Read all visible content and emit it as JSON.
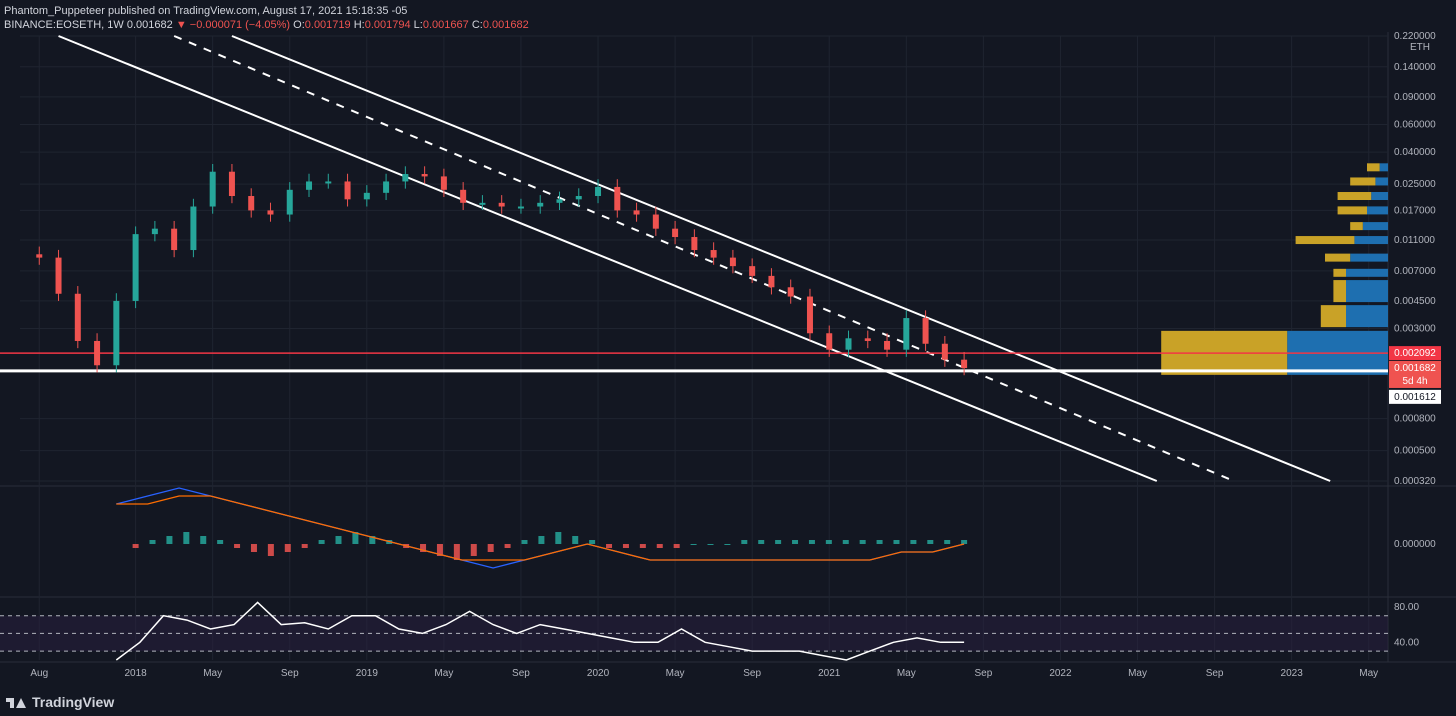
{
  "header": {
    "line1": "Phantom_Puppeteer published on TradingView.com, August 17, 2021 15:18:35 -05",
    "symbol": "BINANCE:EOSETH, 1W",
    "last": "0.001682",
    "change": "−0.000071 (−4.05%)",
    "o_label": "O:",
    "o": "0.001719",
    "h_label": "H:",
    "h": "0.001794",
    "l_label": "L:",
    "l": "0.001667",
    "c_label": "C:",
    "c": "0.001682"
  },
  "footer": {
    "brand": "TradingView"
  },
  "colors": {
    "bg": "#131722",
    "up": "#26a69a",
    "down": "#ef5350",
    "grid": "#1f2430",
    "red_line": "#f23645",
    "white": "#ffffff",
    "vp_gold": "#c9a227",
    "vp_blue": "#1e6fb0"
  },
  "chart_data": [
    {
      "type": "line",
      "title": "",
      "y_scale": "log",
      "ylabel": "ETH",
      "y_ticks": [
        "0.220000",
        "0.140000",
        "0.090000",
        "0.060000",
        "0.040000",
        "0.025000",
        "0.017000",
        "0.011000",
        "0.007000",
        "0.004500",
        "0.003000",
        "0.000800",
        "0.000500",
        "0.000320"
      ],
      "x_ticks": [
        "Aug",
        "2018",
        "May",
        "Sep",
        "2019",
        "May",
        "Sep",
        "2020",
        "May",
        "Sep",
        "2021",
        "May",
        "Sep",
        "2022",
        "May",
        "Sep",
        "2023",
        "May"
      ],
      "x_range": [
        "2017-07",
        "2023-06"
      ],
      "price_labels": {
        "resistance": "0.002092",
        "last": "0.001682",
        "countdown": "5d 4h",
        "support": "0.001612"
      },
      "series": [
        {
          "values": [
            [
              "2017-08",
              0.0085
            ],
            [
              "2017-09",
              0.005
            ],
            [
              "2017-10",
              0.0025
            ],
            [
              "2017-11",
              0.00175
            ],
            [
              "2017-12",
              0.0045
            ],
            [
              "2018-01",
              0.012
            ],
            [
              "2018-02",
              0.013
            ],
            [
              "2018-03",
              0.0095
            ],
            [
              "2018-04",
              0.018
            ],
            [
              "2018-05",
              0.03
            ],
            [
              "2018-06",
              0.021
            ],
            [
              "2018-07",
              0.017
            ],
            [
              "2018-08",
              0.016
            ],
            [
              "2018-09",
              0.023
            ],
            [
              "2018-10",
              0.026
            ],
            [
              "2018-11",
              0.026
            ],
            [
              "2018-12",
              0.02
            ],
            [
              "2019-01",
              0.022
            ],
            [
              "2019-02",
              0.026
            ],
            [
              "2019-03",
              0.029
            ],
            [
              "2019-04",
              0.028
            ],
            [
              "2019-05",
              0.023
            ],
            [
              "2019-06",
              0.019
            ],
            [
              "2019-07",
              0.019
            ],
            [
              "2019-08",
              0.018
            ],
            [
              "2019-09",
              0.018
            ],
            [
              "2019-10",
              0.019
            ],
            [
              "2019-11",
              0.02
            ],
            [
              "2019-12",
              0.021
            ],
            [
              "2020-01",
              0.024
            ],
            [
              "2020-02",
              0.017
            ],
            [
              "2020-03",
              0.016
            ],
            [
              "2020-04",
              0.013
            ],
            [
              "2020-05",
              0.0115
            ],
            [
              "2020-06",
              0.0095
            ],
            [
              "2020-07",
              0.0085
            ],
            [
              "2020-08",
              0.0075
            ],
            [
              "2020-09",
              0.0065
            ],
            [
              "2020-10",
              0.0055
            ],
            [
              "2020-11",
              0.0048
            ],
            [
              "2020-12",
              0.0028
            ],
            [
              "2021-01",
              0.0022
            ],
            [
              "2021-02",
              0.0026
            ],
            [
              "2021-03",
              0.0025
            ],
            [
              "2021-04",
              0.0022
            ],
            [
              "2021-05",
              0.0035
            ],
            [
              "2021-06",
              0.0024
            ],
            [
              "2021-07",
              0.0019
            ],
            [
              "2021-08",
              0.00168
            ]
          ]
        }
      ],
      "channel_lines": [
        {
          "style": "solid",
          "from": [
            "2017-09",
            0.22
          ],
          "to": [
            "2022-06",
            0.00032
          ]
        },
        {
          "style": "dashed",
          "from": [
            "2018-03",
            0.22
          ],
          "to": [
            "2022-10",
            0.00032
          ]
        },
        {
          "style": "solid",
          "from": [
            "2018-06",
            0.22
          ],
          "to": [
            "2023-03",
            0.00032
          ]
        }
      ],
      "horizontal_lines": [
        {
          "color": "#f23645",
          "value": 0.002092
        },
        {
          "color": "#ffffff",
          "value": 0.001612
        }
      ],
      "volume_profile": [
        {
          "price": 0.032,
          "up": 2,
          "down": 3
        },
        {
          "price": 0.026,
          "up": 3,
          "down": 6
        },
        {
          "price": 0.021,
          "up": 4,
          "down": 8
        },
        {
          "price": 0.017,
          "up": 5,
          "down": 7
        },
        {
          "price": 0.0135,
          "up": 6,
          "down": 3
        },
        {
          "price": 0.011,
          "up": 8,
          "down": 14
        },
        {
          "price": 0.0085,
          "up": 9,
          "down": 6
        },
        {
          "price": 0.0068,
          "up": 10,
          "down": 3
        },
        {
          "price": 0.0052,
          "up": 10,
          "down": 3
        },
        {
          "price": 0.0036,
          "up": 10,
          "down": 6
        },
        {
          "price": 0.0021,
          "up": 24,
          "down": 30
        }
      ]
    },
    {
      "type": "bar",
      "title": "",
      "y_ticks": [
        "0.000000"
      ],
      "series": [
        {
          "values": [
            -1,
            1,
            2,
            3,
            2,
            1,
            -1,
            -2,
            -3,
            -2,
            -1,
            1,
            2,
            3,
            2,
            1,
            -1,
            -2,
            -3,
            -4,
            -3,
            -2,
            -1,
            1,
            2,
            3,
            2,
            1,
            -1,
            -1,
            -1,
            -1,
            -1,
            0,
            0,
            0,
            1,
            1,
            1,
            1,
            1,
            1,
            1,
            1,
            1,
            1,
            1,
            1,
            1,
            1
          ]
        },
        {
          "values": [
            5,
            6,
            7,
            6,
            5,
            4,
            3,
            2,
            1,
            0,
            -1,
            -2,
            -3,
            -2,
            -1,
            0,
            -1,
            -2,
            -2,
            -2,
            -2,
            -2,
            -2,
            -2,
            -2,
            -1,
            -1,
            0
          ]
        },
        {
          "values": [
            5,
            5,
            6,
            6,
            5,
            4,
            3,
            2,
            1,
            0,
            -1,
            -2,
            -2,
            -2,
            -1,
            0,
            -1,
            -2,
            -2,
            -2,
            -2,
            -2,
            -2,
            -2,
            -2,
            -1,
            -1,
            0
          ]
        }
      ]
    },
    {
      "type": "line",
      "title": "",
      "y_ticks": [
        "80.00",
        "40.00"
      ],
      "ylim": [
        20,
        90
      ],
      "series": [
        {
          "values": [
            20,
            40,
            70,
            65,
            55,
            60,
            85,
            60,
            62,
            55,
            70,
            70,
            55,
            50,
            60,
            75,
            60,
            50,
            60,
            55,
            50,
            45,
            40,
            40,
            55,
            40,
            35,
            30,
            30,
            30,
            25,
            20,
            30,
            40,
            45,
            40,
            40
          ]
        }
      ]
    }
  ]
}
